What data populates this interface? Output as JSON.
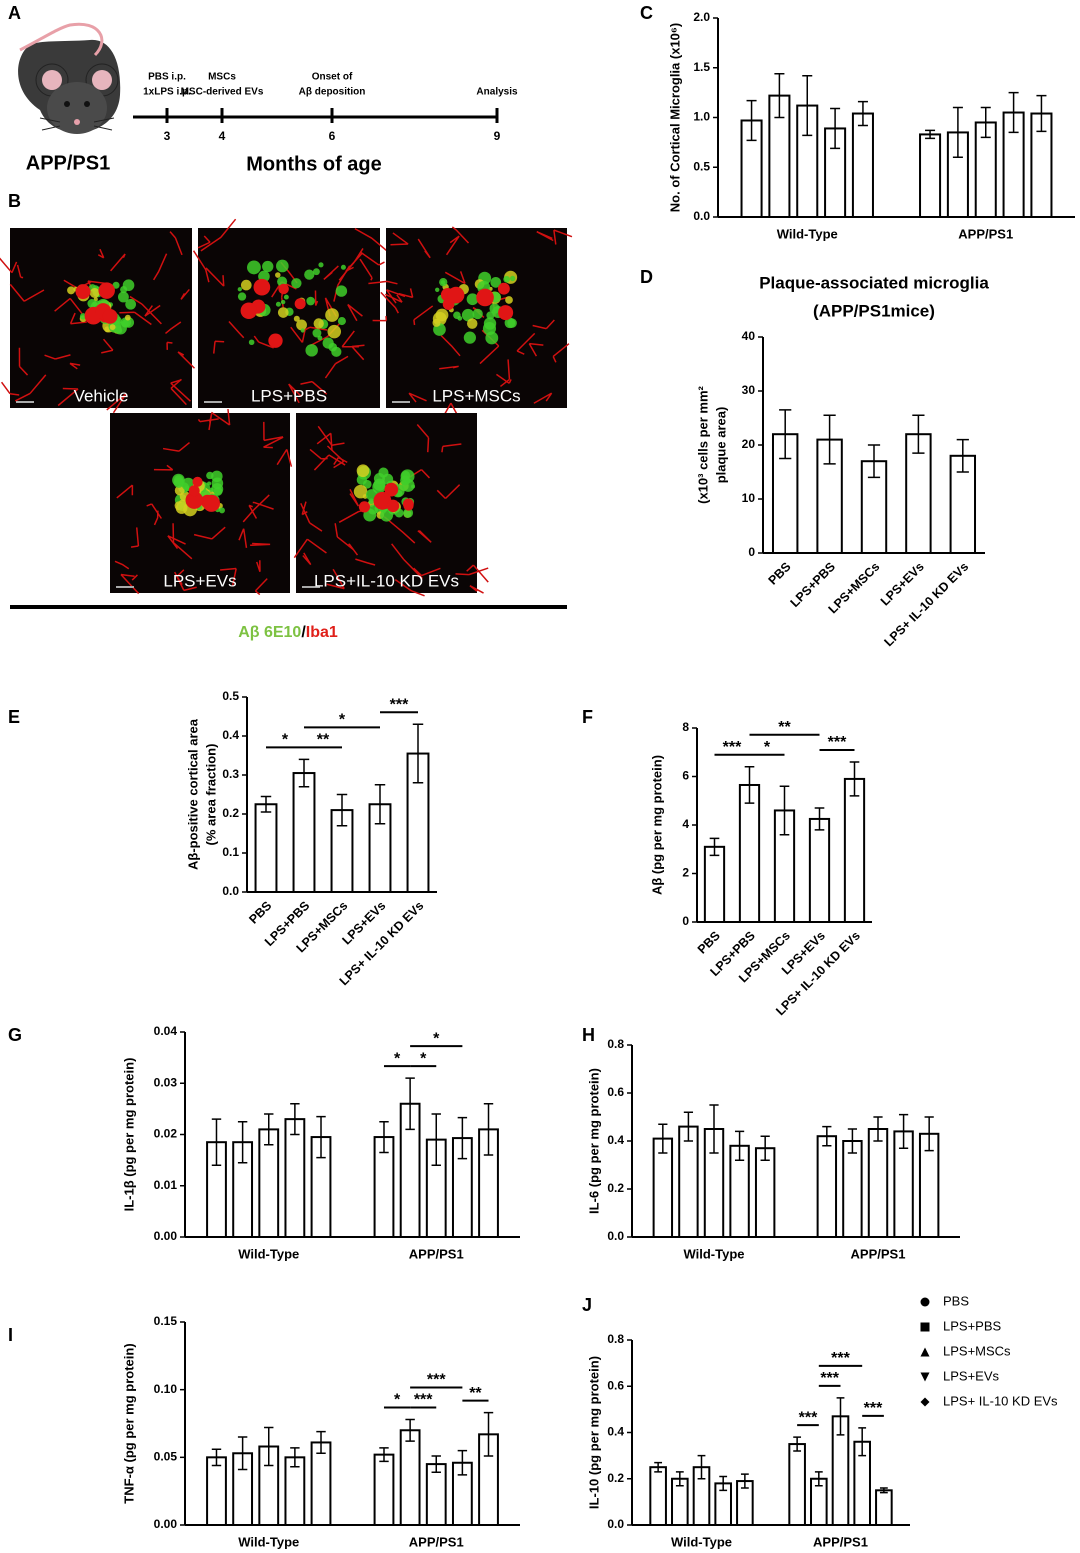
{
  "timeline": {
    "panel": "A",
    "strain": "APP/PS1",
    "axis_label": "Months of age",
    "events": [
      {
        "month": 3,
        "label": [
          "PBS i.p.",
          "1xLPS i.p."
        ]
      },
      {
        "month": 4,
        "label": [
          "MSCs",
          "MSC-derived EVs"
        ]
      },
      {
        "month": 6,
        "label": [
          "Onset of",
          "Aβ deposition"
        ]
      },
      {
        "month": 9,
        "label": [
          "Analysis"
        ]
      }
    ]
  },
  "micrographs": {
    "panel": "B",
    "images": [
      "Vehicle",
      "LPS+PBS",
      "LPS+MSCs",
      "LPS+EVs",
      "LPS+IL-10 KD EVs"
    ],
    "stain": {
      "green": "Aβ 6E10",
      "separator": "/",
      "red": "Iba1"
    }
  },
  "chart_data": [
    {
      "type": "bar",
      "panel": "C",
      "ylabel": [
        "No. of Cortical Microglia (x10⁶)"
      ],
      "color": "#ffffff",
      "edgecolor": "#000000",
      "categories": [
        "Wild-Type",
        "APP/PS1"
      ],
      "series": [
        {
          "values": [
            0.97,
            0.83
          ],
          "errors": [
            0.2,
            0.04
          ]
        },
        {
          "values": [
            1.22,
            0.85
          ],
          "errors": [
            0.22,
            0.25
          ]
        },
        {
          "values": [
            1.12,
            0.95
          ],
          "errors": [
            0.3,
            0.15
          ]
        },
        {
          "values": [
            0.89,
            1.05
          ],
          "errors": [
            0.2,
            0.2
          ]
        },
        {
          "values": [
            1.04,
            1.04
          ],
          "errors": [
            0.12,
            0.18
          ]
        }
      ],
      "ylim": [
        0,
        2
      ],
      "yticks": [
        {
          "value": 0,
          "label": "0.0"
        },
        {
          "value": 0.5,
          "label": "0.5"
        },
        {
          "value": 1,
          "label": "1.0"
        },
        {
          "value": 1.5,
          "label": "1.5"
        },
        {
          "value": 2,
          "label": "2.0"
        }
      ]
    },
    {
      "type": "bar",
      "panel": "D",
      "title": [
        "Plaque-associated microglia",
        "(APP/PS1mice)"
      ],
      "ylabel": [
        "(x10³ cells per mm²",
        "plaque area)"
      ],
      "color": "#ffffff",
      "edgecolor": "#000000",
      "categories": [
        "PBS",
        "LPS+PBS",
        "LPS+MSCs",
        "LPS+EVs",
        "LPS+ IL-10 KD EVs"
      ],
      "values": [
        22,
        21,
        17,
        22,
        18
      ],
      "errors": [
        4.5,
        4.5,
        3,
        3.5,
        3
      ],
      "ylim": [
        0,
        40
      ],
      "yticks": [
        0,
        10,
        20,
        30,
        40
      ]
    },
    {
      "type": "bar",
      "panel": "E",
      "ylabel": [
        "Aβ-positive cortical area",
        "(% area fraction)"
      ],
      "color": "#ffffff",
      "edgecolor": "#000000",
      "categories": [
        "PBS",
        "LPS+PBS",
        "LPS+MSCs",
        "LPS+EVs",
        "LPS+ IL-10 KD EVs"
      ],
      "values": [
        0.225,
        0.305,
        0.21,
        0.225,
        0.355
      ],
      "errors": [
        0.02,
        0.035,
        0.04,
        0.05,
        0.075
      ],
      "ylim": [
        0,
        0.5
      ],
      "yticks": [
        {
          "value": 0,
          "label": "0.0"
        },
        0.1,
        0.2,
        0.3,
        0.4,
        0.5
      ],
      "significance": [
        {
          "from": 0,
          "to": 1,
          "label": "*"
        },
        {
          "from": 1,
          "to": 2,
          "label": "**"
        },
        {
          "from": 1,
          "to": 3,
          "label": "*"
        },
        {
          "from": 3,
          "to": 4,
          "label": "***"
        }
      ]
    },
    {
      "type": "bar",
      "panel": "F",
      "ylabel": [
        "Aβ (pg per mg protein)"
      ],
      "color": "#ffffff",
      "edgecolor": "#000000",
      "categories": [
        "PBS",
        "LPS+PBS",
        "LPS+MSCs",
        "LPS+EVs",
        "LPS+ IL-10 KD EVs"
      ],
      "values": [
        3.1,
        5.65,
        4.6,
        4.25,
        5.9
      ],
      "errors": [
        0.35,
        0.75,
        1.0,
        0.45,
        0.7
      ],
      "ylim": [
        0,
        8
      ],
      "yticks": [
        0,
        2,
        4,
        6,
        8
      ],
      "significance": [
        {
          "from": 0,
          "to": 1,
          "label": "***"
        },
        {
          "from": 1,
          "to": 2,
          "label": "*"
        },
        {
          "from": 1,
          "to": 3,
          "label": "**"
        },
        {
          "from": 3,
          "to": 4,
          "label": "***"
        }
      ]
    },
    {
      "type": "bar",
      "panel": "G",
      "ylabel": [
        "IL-1β (pg per mg protein)"
      ],
      "color": "#ffffff",
      "edgecolor": "#000000",
      "categories": [
        "Wild-Type",
        "APP/PS1"
      ],
      "series": [
        {
          "values": [
            0.0185,
            0.0195
          ],
          "errors": [
            0.0045,
            0.003
          ]
        },
        {
          "values": [
            0.0185,
            0.026
          ],
          "errors": [
            0.004,
            0.005
          ]
        },
        {
          "values": [
            0.021,
            0.019
          ],
          "errors": [
            0.003,
            0.005
          ]
        },
        {
          "values": [
            0.023,
            0.0193
          ],
          "errors": [
            0.003,
            0.004
          ]
        },
        {
          "values": [
            0.0195,
            0.021
          ],
          "errors": [
            0.004,
            0.005
          ]
        }
      ],
      "ylim": [
        0,
        0.04
      ],
      "yticks": [
        {
          "value": 0,
          "label": "0.00"
        },
        {
          "value": 0.01,
          "label": "0.01"
        },
        {
          "value": 0.02,
          "label": "0.02"
        },
        {
          "value": 0.03,
          "label": "0.03"
        },
        {
          "value": 0.04,
          "label": "0.04"
        }
      ],
      "significance": [
        {
          "group": 1,
          "from": 0,
          "to": 1,
          "label": "*"
        },
        {
          "group": 1,
          "from": 1,
          "to": 2,
          "label": "*"
        },
        {
          "group": 1,
          "from": 1,
          "to": 3,
          "label": "*"
        }
      ]
    },
    {
      "type": "bar",
      "panel": "H",
      "ylabel": [
        "IL-6 (pg per mg protein)"
      ],
      "color": "#ffffff",
      "edgecolor": "#000000",
      "categories": [
        "Wild-Type",
        "APP/PS1"
      ],
      "series": [
        {
          "values": [
            0.41,
            0.42
          ],
          "errors": [
            0.06,
            0.04
          ]
        },
        {
          "values": [
            0.46,
            0.4
          ],
          "errors": [
            0.06,
            0.05
          ]
        },
        {
          "values": [
            0.45,
            0.45
          ],
          "errors": [
            0.1,
            0.05
          ]
        },
        {
          "values": [
            0.38,
            0.44
          ],
          "errors": [
            0.06,
            0.07
          ]
        },
        {
          "values": [
            0.37,
            0.43
          ],
          "errors": [
            0.05,
            0.07
          ]
        }
      ],
      "ylim": [
        0,
        0.8
      ],
      "yticks": [
        {
          "value": 0,
          "label": "0.0"
        },
        0.2,
        0.4,
        0.6,
        0.8
      ]
    },
    {
      "type": "bar",
      "panel": "I",
      "ylabel": [
        "TNF-α (pg per mg protein)"
      ],
      "color": "#ffffff",
      "edgecolor": "#000000",
      "categories": [
        "Wild-Type",
        "APP/PS1"
      ],
      "series": [
        {
          "values": [
            0.05,
            0.052
          ],
          "errors": [
            0.006,
            0.005
          ]
        },
        {
          "values": [
            0.053,
            0.07
          ],
          "errors": [
            0.012,
            0.008
          ]
        },
        {
          "values": [
            0.058,
            0.045
          ],
          "errors": [
            0.014,
            0.006
          ]
        },
        {
          "values": [
            0.05,
            0.046
          ],
          "errors": [
            0.007,
            0.009
          ]
        },
        {
          "values": [
            0.061,
            0.067
          ],
          "errors": [
            0.008,
            0.016
          ]
        }
      ],
      "ylim": [
        0,
        0.15
      ],
      "yticks": [
        {
          "value": 0,
          "label": "0.00"
        },
        0.05,
        {
          "value": 0.1,
          "label": "0.10"
        },
        0.15
      ],
      "significance": [
        {
          "group": 1,
          "from": 0,
          "to": 1,
          "label": "*"
        },
        {
          "group": 1,
          "from": 1,
          "to": 2,
          "label": "***"
        },
        {
          "group": 1,
          "from": 1,
          "to": 3,
          "label": "***"
        },
        {
          "group": 1,
          "from": 3,
          "to": 4,
          "label": "**"
        }
      ]
    },
    {
      "type": "bar",
      "panel": "J",
      "ylabel": [
        "IL-10 (pg per mg protein)"
      ],
      "color": "#ffffff",
      "edgecolor": "#000000",
      "legend": "right",
      "categories": [
        "Wild-Type",
        "APP/PS1"
      ],
      "series": [
        {
          "name": "PBS",
          "marker": "circle",
          "values": [
            0.25,
            0.35
          ],
          "errors": [
            0.02,
            0.03
          ]
        },
        {
          "name": "LPS+PBS",
          "marker": "square",
          "values": [
            0.2,
            0.2
          ],
          "errors": [
            0.03,
            0.03
          ]
        },
        {
          "name": "LPS+MSCs",
          "marker": "triangle",
          "values": [
            0.25,
            0.47
          ],
          "errors": [
            0.05,
            0.08
          ]
        },
        {
          "name": "LPS+EVs",
          "marker": "triangle-down",
          "values": [
            0.18,
            0.36
          ],
          "errors": [
            0.03,
            0.06
          ]
        },
        {
          "name": "LPS+ IL-10 KD EVs",
          "marker": "diamond",
          "values": [
            0.19,
            0.15
          ],
          "errors": [
            0.03,
            0.01
          ]
        }
      ],
      "ylim": [
        0,
        0.8
      ],
      "yticks": [
        {
          "value": 0,
          "label": "0.0"
        },
        0.2,
        0.4,
        0.6,
        0.8
      ],
      "significance": [
        {
          "group": 1,
          "from": 0,
          "to": 1,
          "label": "***"
        },
        {
          "group": 1,
          "from": 1,
          "to": 2,
          "label": "***"
        },
        {
          "group": 1,
          "from": 1,
          "to": 3,
          "label": "***"
        },
        {
          "group": 1,
          "from": 3,
          "to": 4,
          "label": "***"
        }
      ]
    }
  ]
}
